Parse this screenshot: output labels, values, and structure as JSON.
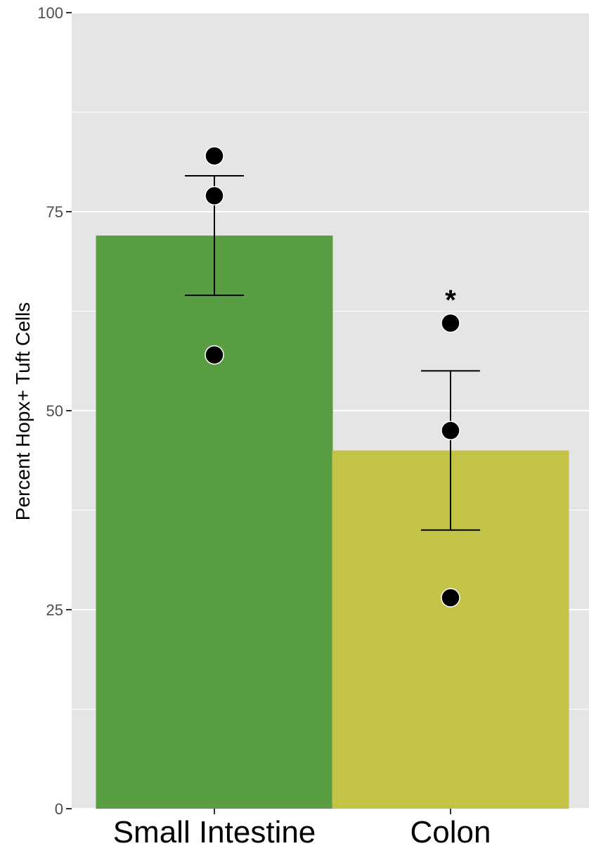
{
  "chart_data": {
    "type": "bar",
    "categories": [
      "Small Intestine",
      "Colon"
    ],
    "values": [
      72,
      45
    ],
    "colors": [
      "#5a9e44",
      "#c3c447"
    ],
    "errors": [
      {
        "low": 64.5,
        "high": 79.5
      },
      {
        "low": 35,
        "high": 55
      }
    ],
    "points": [
      [
        82,
        77,
        57
      ],
      [
        61,
        47.5,
        26.5
      ]
    ],
    "annotations": [
      {
        "category_index": 1,
        "text": "*",
        "y": 64.5
      }
    ],
    "title": "",
    "xlabel": "",
    "ylabel": "Percent Hopx+ Tuft Cells",
    "ylim": [
      0,
      100
    ],
    "yticks": [
      0,
      25,
      50,
      75,
      100
    ],
    "ytick_labels": [
      "0",
      "25",
      "50",
      "75",
      "100"
    ],
    "grid": true,
    "panel_background": "#e5e5e5",
    "grid_color": "#ffffff"
  }
}
